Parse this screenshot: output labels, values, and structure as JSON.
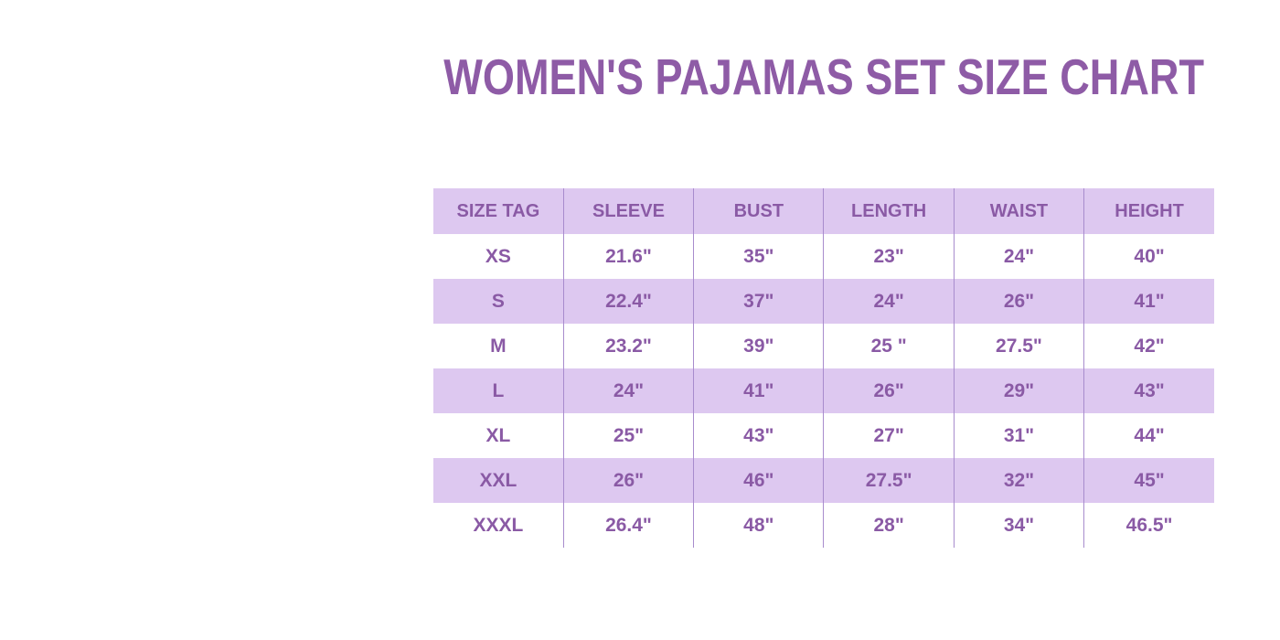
{
  "colors": {
    "background": "#ffffff",
    "title_purple": "#8e5ba6",
    "text_purple": "#8a5aa5",
    "row_lavender": "#ddc8f0",
    "divider_purple": "#a88ccd"
  },
  "chart_data": {
    "type": "table",
    "title": "WOMEN'S PAJAMAS SET SIZE CHART",
    "columns": [
      "SIZE TAG",
      "SLEEVE",
      "BUST",
      "LENGTH",
      "WAIST",
      "HEIGHT"
    ],
    "rows": [
      [
        "XS",
        "21.6\"",
        "35\"",
        "23\"",
        "24\"",
        "40\""
      ],
      [
        "S",
        "22.4\"",
        "37\"",
        "24\"",
        "26\"",
        "41\""
      ],
      [
        "M",
        "23.2\"",
        "39\"",
        "25 \"",
        "27.5\"",
        "42\""
      ],
      [
        "L",
        "24\"",
        "41\"",
        "26\"",
        "29\"",
        "43\""
      ],
      [
        "XL",
        "25\"",
        "43\"",
        "27\"",
        "31\"",
        "44\""
      ],
      [
        "XXL",
        "26\"",
        "46\"",
        "27.5\"",
        "32\"",
        "45\""
      ],
      [
        "XXXL",
        "26.4\"",
        "48\"",
        "28\"",
        "34\"",
        "46.5\""
      ]
    ]
  }
}
